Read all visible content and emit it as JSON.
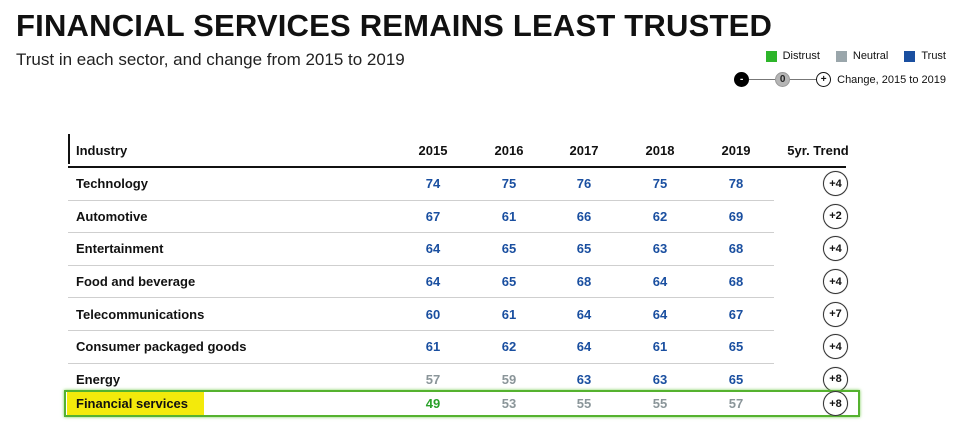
{
  "title": "FINANCIAL SERVICES REMAINS LEAST TRUSTED",
  "subtitle": "Trust in each sector, and change from 2015 to 2019",
  "legend": {
    "distrust": "Distrust",
    "neutral": "Neutral",
    "trust": "Trust",
    "change_neg": "-",
    "change_zero": "0",
    "change_pos": "+",
    "change_label": "Change, 2015 to 2019"
  },
  "colors": {
    "distrust": "#2aa12a",
    "neutral": "#8a9599",
    "trust": "#1a4fa0",
    "highlight_fill": "#f3ea0b",
    "highlight_border": "#55b22f"
  },
  "table": {
    "header": {
      "industry": "Industry",
      "y2015": "2015",
      "y2016": "2016",
      "y2017": "2017",
      "y2018": "2018",
      "y2019": "2019",
      "trend": "5yr. Trend"
    }
  },
  "chart_data": {
    "type": "table",
    "title": "FINANCIAL SERVICES REMAINS LEAST TRUSTED",
    "subtitle": "Trust in each sector, and change from 2015 to 2019",
    "columns": [
      "Industry",
      "2015",
      "2016",
      "2017",
      "2018",
      "2019",
      "5yr. Trend"
    ],
    "rows": [
      {
        "industry": "Technology",
        "values": [
          74,
          75,
          76,
          75,
          78
        ],
        "levels": [
          "trust",
          "trust",
          "trust",
          "trust",
          "trust"
        ],
        "trend": "+4"
      },
      {
        "industry": "Automotive",
        "values": [
          67,
          61,
          66,
          62,
          69
        ],
        "levels": [
          "trust",
          "trust",
          "trust",
          "trust",
          "trust"
        ],
        "trend": "+2"
      },
      {
        "industry": "Entertainment",
        "values": [
          64,
          65,
          65,
          63,
          68
        ],
        "levels": [
          "trust",
          "trust",
          "trust",
          "trust",
          "trust"
        ],
        "trend": "+4"
      },
      {
        "industry": "Food and beverage",
        "values": [
          64,
          65,
          68,
          64,
          68
        ],
        "levels": [
          "trust",
          "trust",
          "trust",
          "trust",
          "trust"
        ],
        "trend": "+4"
      },
      {
        "industry": "Telecommunications",
        "values": [
          60,
          61,
          64,
          64,
          67
        ],
        "levels": [
          "trust",
          "trust",
          "trust",
          "trust",
          "trust"
        ],
        "trend": "+7"
      },
      {
        "industry": "Consumer packaged goods",
        "values": [
          61,
          62,
          64,
          61,
          65
        ],
        "levels": [
          "trust",
          "trust",
          "trust",
          "trust",
          "trust"
        ],
        "trend": "+4"
      },
      {
        "industry": "Energy",
        "values": [
          57,
          59,
          63,
          63,
          65
        ],
        "levels": [
          "neutral",
          "neutral",
          "trust",
          "trust",
          "trust"
        ],
        "trend": "+8"
      },
      {
        "industry": "Financial services",
        "values": [
          49,
          53,
          55,
          55,
          57
        ],
        "levels": [
          "distrust",
          "neutral",
          "neutral",
          "neutral",
          "neutral"
        ],
        "trend": "+8",
        "highlighted": true
      }
    ]
  }
}
